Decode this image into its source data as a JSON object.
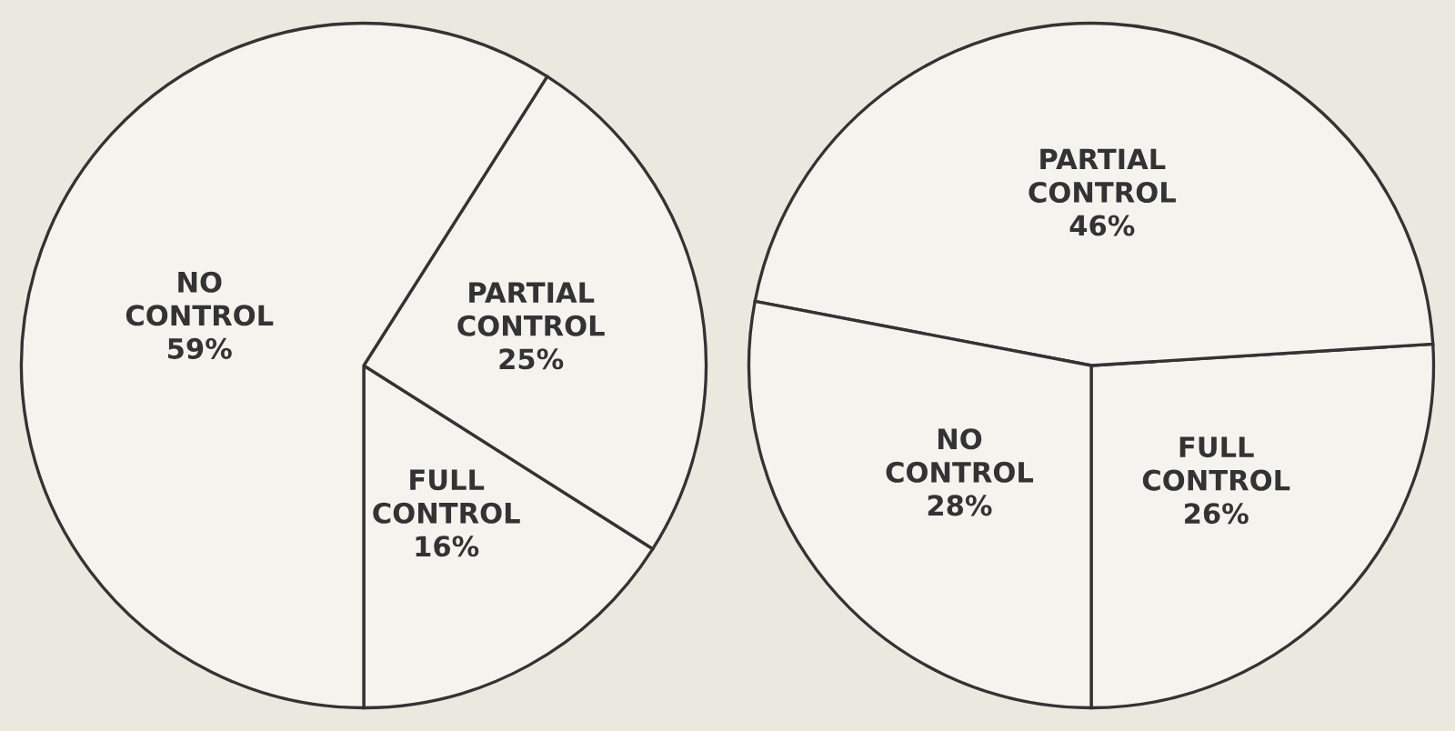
{
  "chart_data": [
    {
      "type": "pie",
      "categories": [
        "FULL CONTROL",
        "PARTIAL CONTROL",
        "NO CONTROL"
      ],
      "values": [
        16,
        25,
        59
      ],
      "value_labels": [
        "16%",
        "25%",
        "59%"
      ],
      "colors": [
        "#f5f3ee",
        "#f5f3ee",
        "#f5f3ee"
      ]
    },
    {
      "type": "pie",
      "categories": [
        "FULL CONTROL",
        "PARTIAL CONTROL",
        "NO CONTROL"
      ],
      "values": [
        26,
        46,
        28
      ],
      "value_labels": [
        "26%",
        "46%",
        "28%"
      ],
      "colors": [
        "#f5f3ee",
        "#f5f3ee",
        "#f5f3ee"
      ]
    }
  ]
}
